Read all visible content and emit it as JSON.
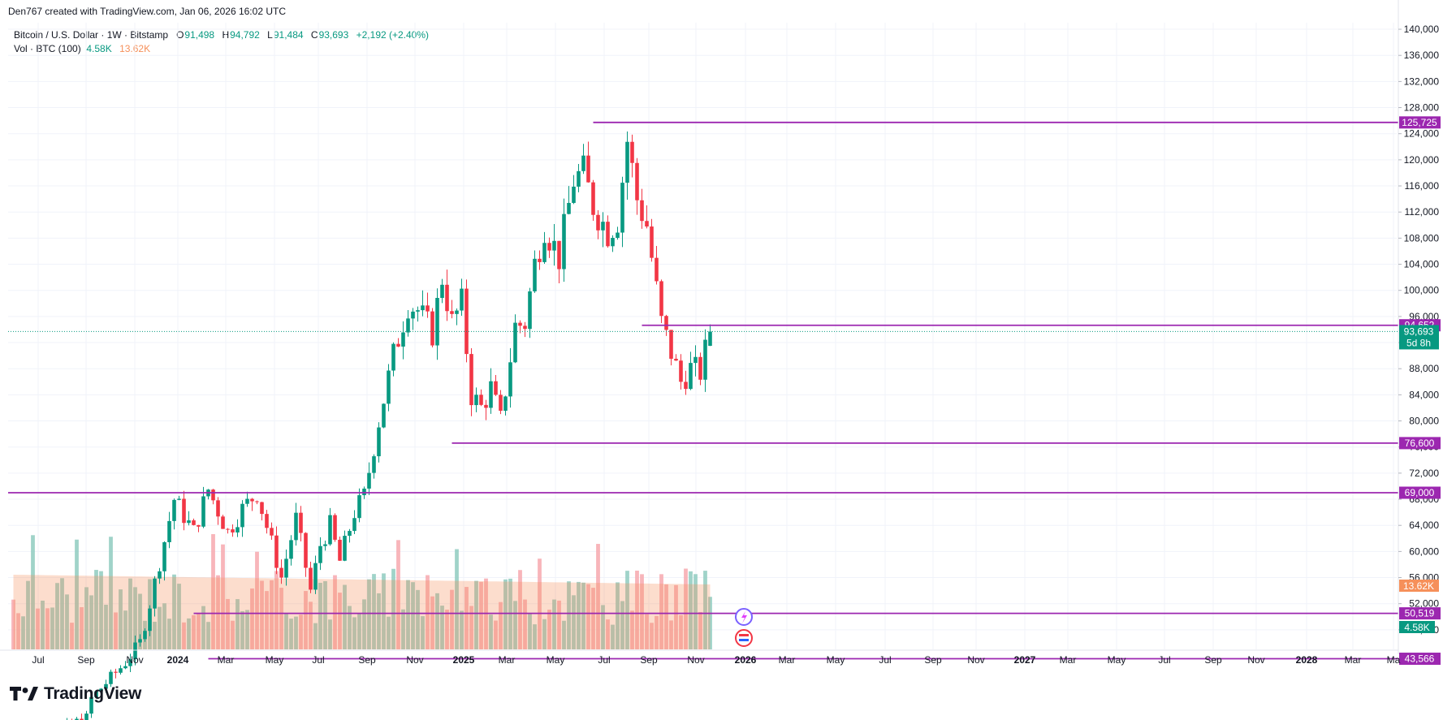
{
  "header": {
    "attribution": "Den767 created with TradingView.com, Jan 06, 2026 16:02 UTC",
    "symbol": "Bitcoin / U.S. Dollar · 1W · Bitstamp",
    "ohlc": {
      "o_label": "O",
      "o": "91,498",
      "h_label": "H",
      "h": "94,792",
      "l_label": "L",
      "l": "91,484",
      "c_label": "C",
      "c": "93,693",
      "change": "+2,192 (+2.40%)"
    },
    "volume": {
      "label": "Vol · BTC (100)",
      "value": "4.58K",
      "ma": "13.62K"
    }
  },
  "footer": {
    "brand": "TradingView"
  },
  "colors": {
    "up": "#089981",
    "down": "#f23645",
    "level": "#9c27b0",
    "up_vol": "#8fcbc0",
    "down_vol": "#f7a8ae",
    "vol_ma": "#f6905a",
    "grid": "#f0f3fa"
  },
  "price_axis": {
    "ticks": [
      48000,
      52000,
      56000,
      60000,
      64000,
      68000,
      72000,
      76000,
      80000,
      84000,
      88000,
      92000,
      96000,
      100000,
      104000,
      108000,
      112000,
      116000,
      120000,
      124000,
      128000,
      132000,
      136000,
      140000
    ],
    "labels": [
      "48,000",
      "52,000",
      "56,000",
      "60,000",
      "64,000",
      "68,000",
      "72,000",
      "76,000",
      "80,000",
      "84,000",
      "88,000",
      "92,000",
      "96,000",
      "100,000",
      "104,000",
      "108,000",
      "112,000",
      "116,000",
      "120,000",
      "124,000",
      "128,000",
      "132,000",
      "136,000",
      "140,000"
    ],
    "current_price_label": "93,693",
    "countdown": "5d 8h",
    "vol_ma_label": "13.62K",
    "vol_label": "4.58K"
  },
  "time_axis": {
    "labels": [
      "Jul",
      "Sep",
      "Nov",
      "2024",
      "Mar",
      "May",
      "Jul",
      "Sep",
      "Nov",
      "2025",
      "Mar",
      "May",
      "Jul",
      "Sep",
      "Nov",
      "2026",
      "Mar",
      "May",
      "Jul",
      "Sep",
      "Nov",
      "2027",
      "Mar",
      "May",
      "Jul",
      "Sep",
      "Nov",
      "2028",
      "Mar",
      "Ma"
    ],
    "bold": [
      "2024",
      "2025",
      "2026",
      "2027",
      "2028"
    ]
  },
  "chart_data": {
    "type": "candlestick",
    "title": "Bitcoin / U.S. Dollar · 1W · Bitstamp",
    "interval": "1W",
    "ylim": [
      45000,
      141000
    ],
    "scale": "linear",
    "grid": true,
    "last": {
      "open": 91498,
      "high": 94792,
      "low": 91484,
      "close": 93693
    },
    "levels": [
      {
        "label": "125,725",
        "price": 125725
      },
      {
        "label": "94,652",
        "price": 94652
      },
      {
        "label": "76,600",
        "price": 76600
      },
      {
        "label": "69,000",
        "price": 69000
      },
      {
        "label": "50,519",
        "price": 50519
      },
      {
        "label": "43,566",
        "price": 43566
      }
    ],
    "path_points": [
      [
        0,
        30000
      ],
      [
        15,
        34500
      ],
      [
        16,
        37500
      ],
      [
        23,
        43000
      ],
      [
        26,
        46000
      ],
      [
        28,
        52000
      ],
      [
        33,
        68000
      ],
      [
        37,
        63000
      ],
      [
        40,
        69500
      ],
      [
        44,
        63000
      ],
      [
        47,
        66500
      ],
      [
        50,
        69000
      ],
      [
        55,
        56000
      ],
      [
        58,
        65000
      ],
      [
        61,
        54000
      ],
      [
        63,
        61000
      ],
      [
        65,
        64000
      ],
      [
        67,
        58500
      ],
      [
        70,
        66000
      ],
      [
        72,
        68500
      ],
      [
        75,
        80000
      ],
      [
        78,
        90000
      ],
      [
        81,
        98000
      ],
      [
        83,
        97000
      ],
      [
        86,
        93500
      ],
      [
        88,
        102000
      ],
      [
        90,
        95000
      ],
      [
        92,
        98000
      ],
      [
        94,
        84000
      ],
      [
        96,
        82000
      ],
      [
        98,
        85000
      ],
      [
        100,
        80000
      ],
      [
        103,
        94500
      ],
      [
        105,
        95000
      ],
      [
        107,
        104000
      ],
      [
        109,
        110000
      ],
      [
        112,
        105000
      ],
      [
        115,
        117000
      ],
      [
        117,
        118000
      ],
      [
        119,
        113000
      ],
      [
        122,
        109000
      ],
      [
        124,
        111000
      ],
      [
        126,
        123000
      ],
      [
        128,
        114000
      ],
      [
        130,
        110000
      ],
      [
        133,
        95000
      ],
      [
        135,
        90500
      ],
      [
        137,
        86000
      ],
      [
        139,
        88000
      ],
      [
        141,
        87500
      ],
      [
        143,
        93693
      ]
    ],
    "volume": {
      "ma_length": 100,
      "last_value": 4580,
      "ma_value": 13620
    }
  }
}
